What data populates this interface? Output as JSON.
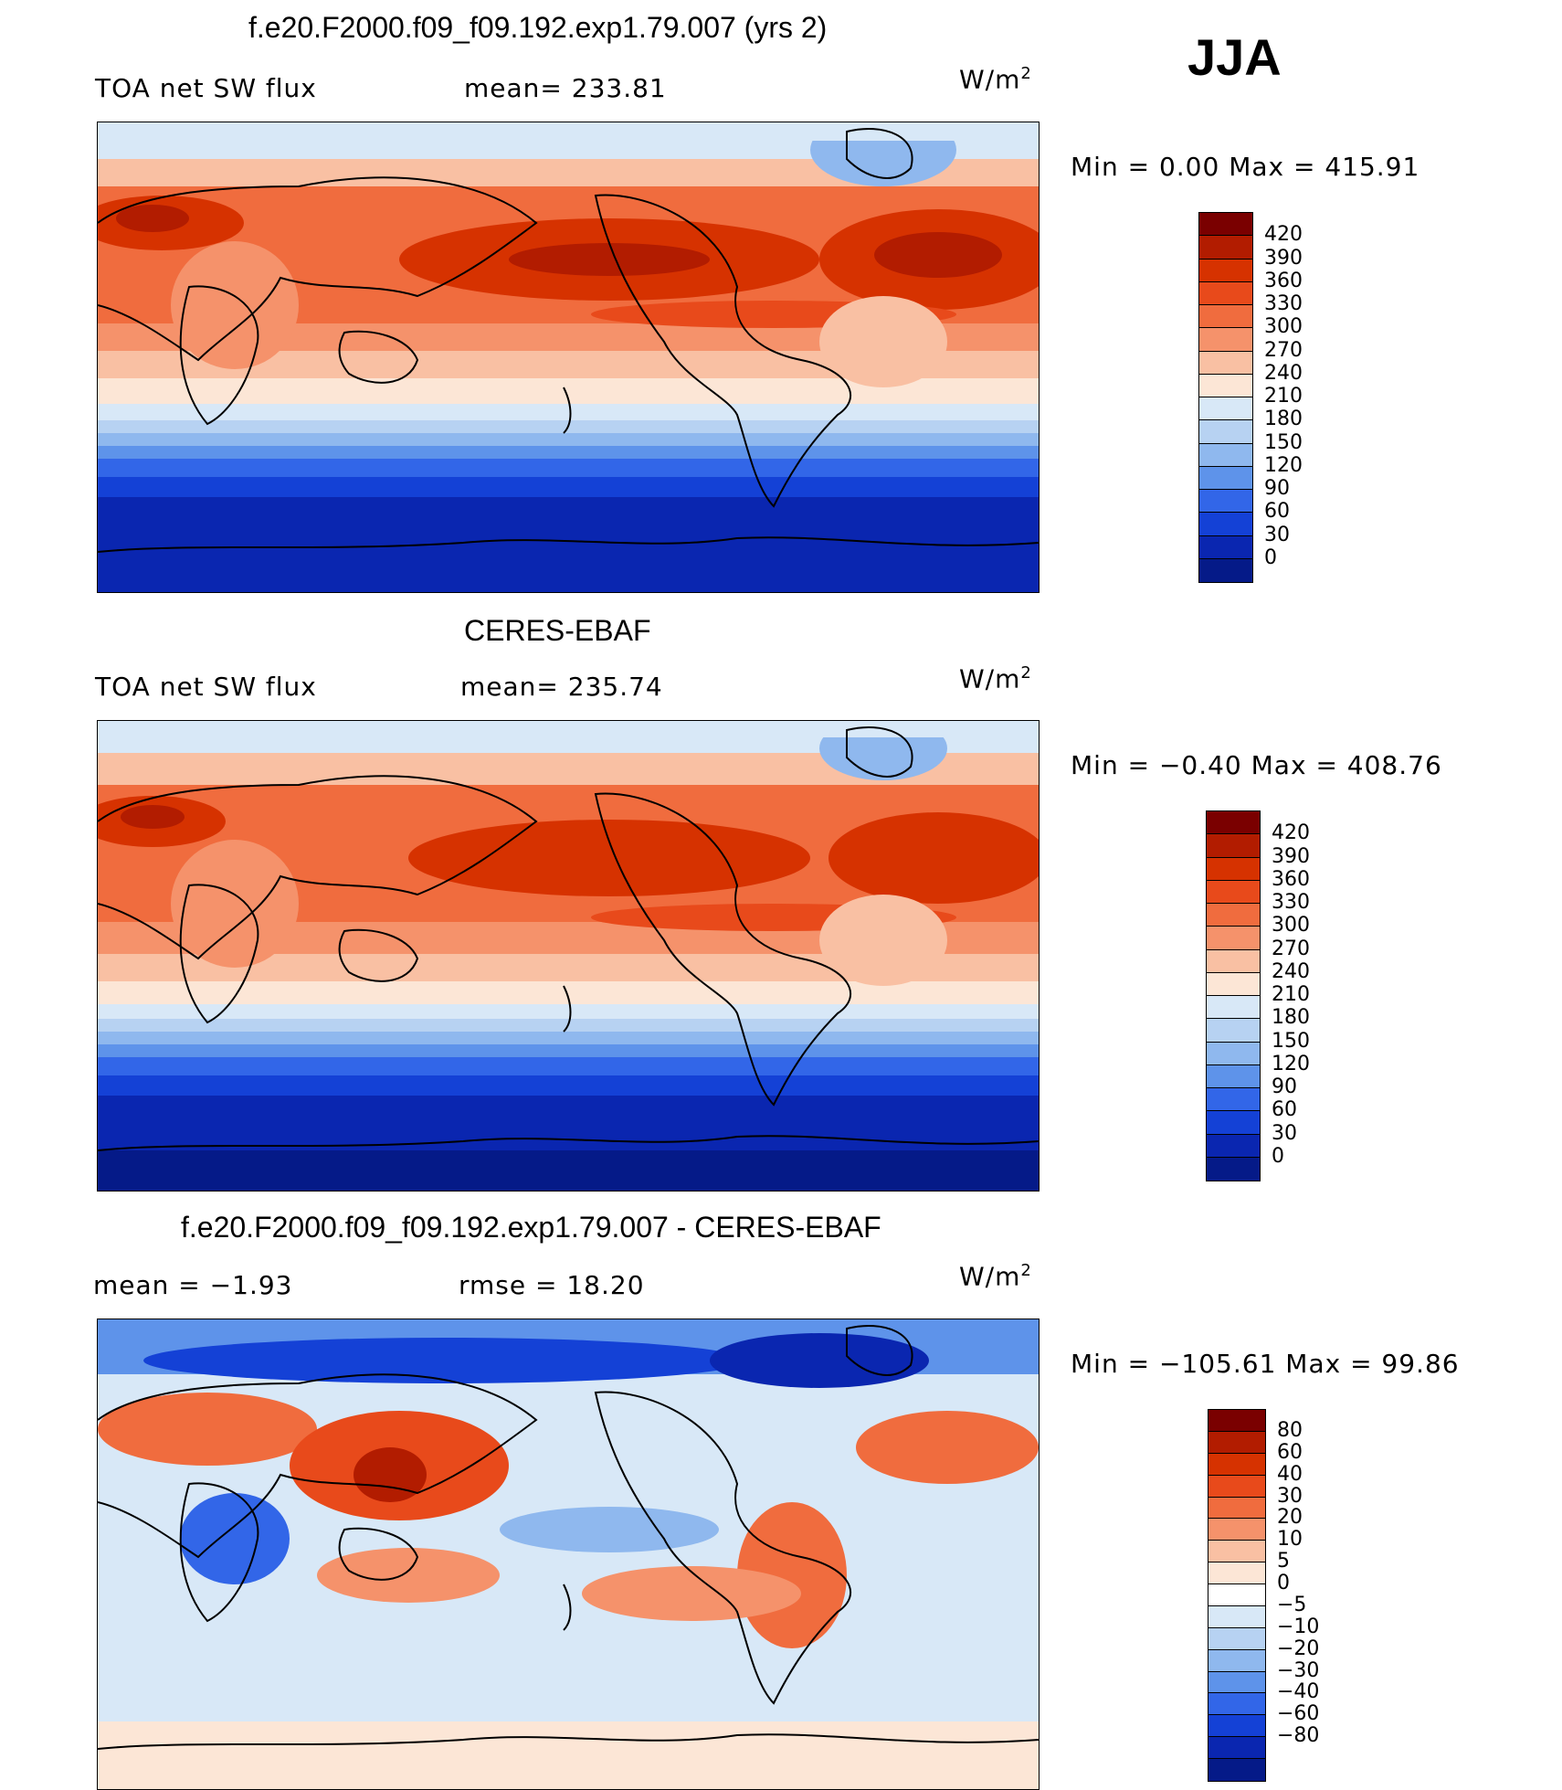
{
  "season": "JJA",
  "panels": [
    {
      "title": "f.e20.F2000.f09_f09.192.exp1.79.007 (yrs 2)",
      "variable": "TOA net SW flux",
      "stat1": "mean= 233.81",
      "units_base": "W/m",
      "units_exp": "2",
      "minmax": "Min =    0.00  Max  =  415.91",
      "colorbar_labels": [
        "420",
        "390",
        "360",
        "330",
        "300",
        "270",
        "240",
        "210",
        "180",
        "150",
        "120",
        "90",
        "60",
        "30",
        "0"
      ],
      "colorbar_colors": [
        "#7a0000",
        "#b21c00",
        "#d63200",
        "#e84a1b",
        "#f06c3e",
        "#f5926b",
        "#f9c0a3",
        "#fce6d6",
        "#d8e8f7",
        "#b7d2f2",
        "#8fb8ee",
        "#5e93ea",
        "#3266e8",
        "#1441d6",
        "#0a26b0",
        "#051a88"
      ]
    },
    {
      "title": "CERES-EBAF",
      "variable": "TOA net SW flux",
      "stat1": "mean= 235.74",
      "units_base": "W/m",
      "units_exp": "2",
      "minmax": "Min =   −0.40  Max  =  408.76",
      "colorbar_labels": [
        "420",
        "390",
        "360",
        "330",
        "300",
        "270",
        "240",
        "210",
        "180",
        "150",
        "120",
        "90",
        "60",
        "30",
        "0"
      ],
      "colorbar_colors": [
        "#7a0000",
        "#b21c00",
        "#d63200",
        "#e84a1b",
        "#f06c3e",
        "#f5926b",
        "#f9c0a3",
        "#fce6d6",
        "#d8e8f7",
        "#b7d2f2",
        "#8fb8ee",
        "#5e93ea",
        "#3266e8",
        "#1441d6",
        "#0a26b0",
        "#051a88"
      ]
    },
    {
      "title": "f.e20.F2000.f09_f09.192.exp1.79.007 - CERES-EBAF",
      "stat1": "mean =    −1.93",
      "stat2": "rmse =    18.20",
      "units_base": "W/m",
      "units_exp": "2",
      "minmax": "Min = −105.61  Max =    99.86",
      "colorbar_labels": [
        "80",
        "60",
        "40",
        "30",
        "20",
        "10",
        "5",
        "0",
        "−5",
        "−10",
        "−20",
        "−30",
        "−40",
        "−60",
        "−80"
      ],
      "colorbar_colors": [
        "#7a0000",
        "#b21c00",
        "#d63200",
        "#e84a1b",
        "#f06c3e",
        "#f5926b",
        "#f9c0a3",
        "#fce6d6",
        "#ffffff",
        "#d8e8f7",
        "#b7d2f2",
        "#8fb8ee",
        "#5e93ea",
        "#3266e8",
        "#1441d6",
        "#0a26b0",
        "#051a88"
      ]
    }
  ]
}
